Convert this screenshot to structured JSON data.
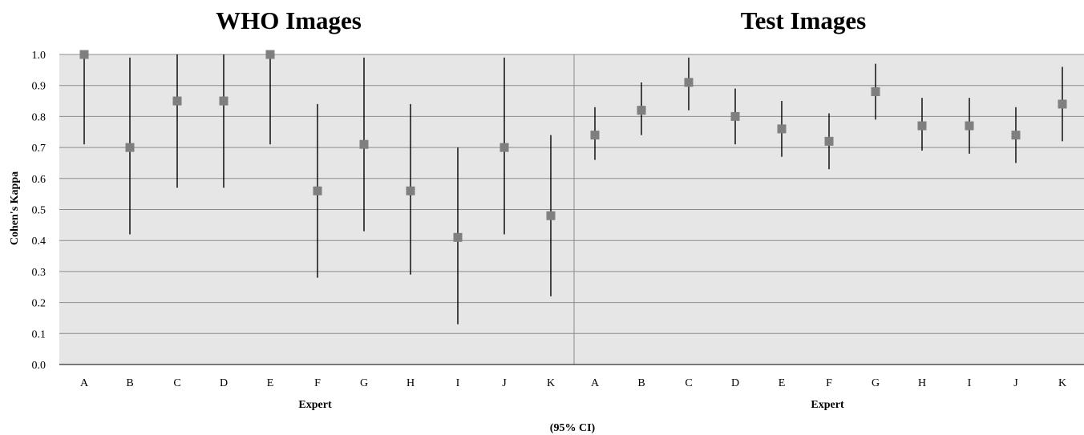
{
  "chart_data": {
    "type": "scatter",
    "ylabel": "Cohen's Kappa",
    "ylim": [
      0.0,
      1.0
    ],
    "yticks": [
      "0.0",
      "0.1",
      "0.2",
      "0.3",
      "0.4",
      "0.5",
      "0.6",
      "0.7",
      "0.8",
      "0.9",
      "1.0"
    ],
    "grid": true,
    "footer": "(95% CI)",
    "panels": [
      {
        "title": "WHO Images",
        "xlabel": "Expert",
        "categories": [
          "A",
          "B",
          "C",
          "D",
          "E",
          "F",
          "G",
          "H",
          "I",
          "J",
          "K"
        ],
        "values": [
          1.0,
          0.7,
          0.85,
          0.85,
          1.0,
          0.56,
          0.71,
          0.56,
          0.41,
          0.7,
          0.48
        ],
        "ci_low": [
          0.71,
          0.42,
          0.57,
          0.57,
          0.71,
          0.28,
          0.43,
          0.29,
          0.13,
          0.42,
          0.22
        ],
        "ci_high": [
          1.0,
          0.99,
          1.0,
          1.0,
          1.0,
          0.84,
          0.99,
          0.84,
          0.7,
          0.99,
          0.74
        ]
      },
      {
        "title": "Test Images",
        "xlabel": "Expert",
        "categories": [
          "A",
          "B",
          "C",
          "D",
          "E",
          "F",
          "G",
          "H",
          "I",
          "J",
          "K"
        ],
        "values": [
          0.74,
          0.82,
          0.91,
          0.8,
          0.76,
          0.72,
          0.88,
          0.77,
          0.77,
          0.74,
          0.84
        ],
        "ci_low": [
          0.66,
          0.74,
          0.82,
          0.71,
          0.67,
          0.63,
          0.79,
          0.69,
          0.68,
          0.65,
          0.72
        ],
        "ci_high": [
          0.83,
          0.91,
          0.99,
          0.89,
          0.85,
          0.81,
          0.97,
          0.86,
          0.86,
          0.83,
          0.96
        ]
      }
    ]
  },
  "colors": {
    "plot_background": "#e6e6e6",
    "gridline": "#8c8c8c",
    "marker": "#7f7f7f",
    "error_bar": "#000000"
  }
}
